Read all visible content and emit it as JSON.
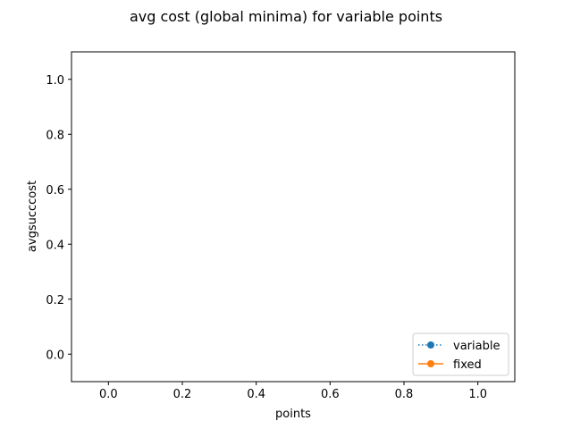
{
  "chart_data": {
    "type": "line",
    "title": "avg cost (global minima) for variable points",
    "xlabel": "points",
    "ylabel": "avgsucccost",
    "xlim": [
      -0.1,
      1.1
    ],
    "ylim": [
      -0.1,
      1.1
    ],
    "xticks": [
      "0.0",
      "0.2",
      "0.4",
      "0.6",
      "0.8",
      "1.0"
    ],
    "yticks": [
      "0.0",
      "0.2",
      "0.4",
      "0.6",
      "0.8",
      "1.0"
    ],
    "grid": false,
    "legend_position": "lower-right",
    "series": [
      {
        "name": "variable",
        "color": "#1f77b4",
        "linestyle": "dotted",
        "marker": "circle",
        "x": [],
        "y": []
      },
      {
        "name": "fixed",
        "color": "#ff7f0e",
        "linestyle": "solid",
        "marker": "circle",
        "x": [],
        "y": []
      }
    ]
  }
}
